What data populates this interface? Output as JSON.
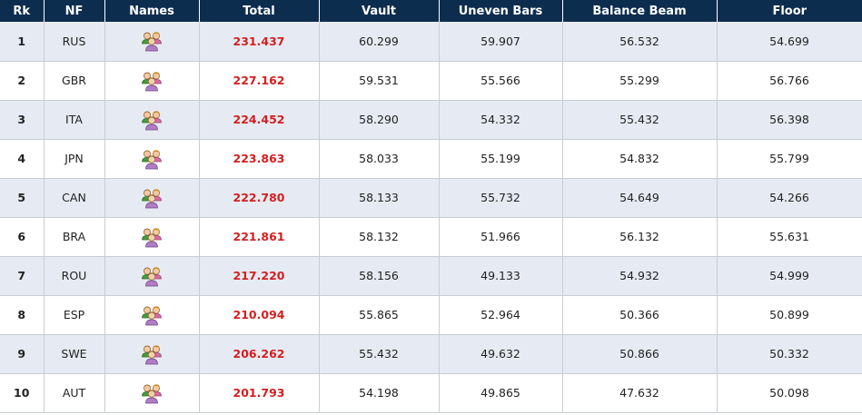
{
  "table": {
    "headers": [
      "Rk",
      "NF",
      "Names",
      "Total",
      "Vault",
      "Uneven Bars",
      "Balance Beam",
      "Floor"
    ],
    "rows": [
      {
        "rk": "1",
        "nf": "RUS",
        "names_icon": "team-members-icon",
        "total": "231.437",
        "vault": "60.299",
        "uneven_bars": "59.907",
        "balance_beam": "56.532",
        "floor": "54.699"
      },
      {
        "rk": "2",
        "nf": "GBR",
        "names_icon": "team-members-icon",
        "total": "227.162",
        "vault": "59.531",
        "uneven_bars": "55.566",
        "balance_beam": "55.299",
        "floor": "56.766"
      },
      {
        "rk": "3",
        "nf": "ITA",
        "names_icon": "team-members-icon",
        "total": "224.452",
        "vault": "58.290",
        "uneven_bars": "54.332",
        "balance_beam": "55.432",
        "floor": "56.398"
      },
      {
        "rk": "4",
        "nf": "JPN",
        "names_icon": "team-members-icon",
        "total": "223.863",
        "vault": "58.033",
        "uneven_bars": "55.199",
        "balance_beam": "54.832",
        "floor": "55.799"
      },
      {
        "rk": "5",
        "nf": "CAN",
        "names_icon": "team-members-icon",
        "total": "222.780",
        "vault": "58.133",
        "uneven_bars": "55.732",
        "balance_beam": "54.649",
        "floor": "54.266"
      },
      {
        "rk": "6",
        "nf": "BRA",
        "names_icon": "team-members-icon",
        "total": "221.861",
        "vault": "58.132",
        "uneven_bars": "51.966",
        "balance_beam": "56.132",
        "floor": "55.631"
      },
      {
        "rk": "7",
        "nf": "ROU",
        "names_icon": "team-members-icon",
        "total": "217.220",
        "vault": "58.156",
        "uneven_bars": "49.133",
        "balance_beam": "54.932",
        "floor": "54.999"
      },
      {
        "rk": "8",
        "nf": "ESP",
        "names_icon": "team-members-icon",
        "total": "210.094",
        "vault": "55.865",
        "uneven_bars": "52.964",
        "balance_beam": "50.366",
        "floor": "50.899"
      },
      {
        "rk": "9",
        "nf": "SWE",
        "names_icon": "team-members-icon",
        "total": "206.262",
        "vault": "55.432",
        "uneven_bars": "49.632",
        "balance_beam": "50.866",
        "floor": "50.332"
      },
      {
        "rk": "10",
        "nf": "AUT",
        "names_icon": "team-members-icon",
        "total": "201.793",
        "vault": "54.198",
        "uneven_bars": "49.865",
        "balance_beam": "47.632",
        "floor": "50.098"
      }
    ]
  },
  "colors": {
    "header_bg": "#0d2d4f",
    "header_text": "#ffffff",
    "row_stripe": "#e6ebf3",
    "total_text": "#d41f1f",
    "border": "#c8cdd4"
  }
}
